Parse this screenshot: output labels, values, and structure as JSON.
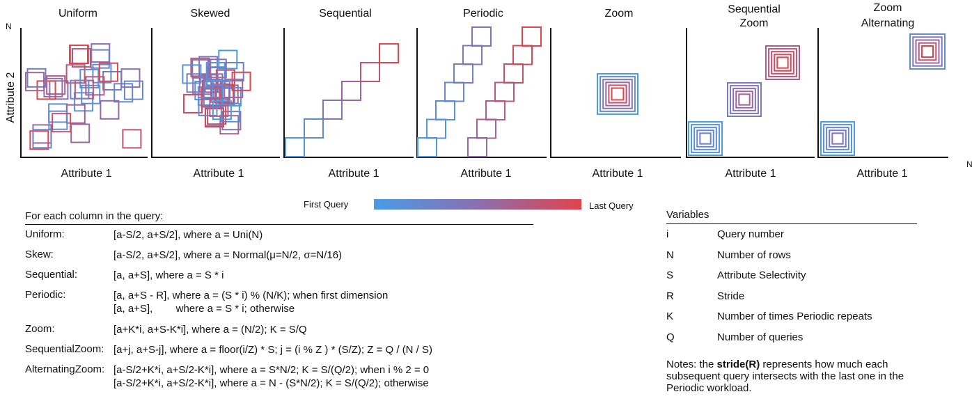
{
  "panels": [
    {
      "title": "Uniform",
      "xlabel": "Attribute 1"
    },
    {
      "title": "Skewed",
      "xlabel": "Attribute 1"
    },
    {
      "title": "Sequential",
      "xlabel": "Attribute 1"
    },
    {
      "title": "Periodic",
      "xlabel": "Attribute 1"
    },
    {
      "title": "Zoom",
      "xlabel": "Attribute 1"
    },
    {
      "title_line1": "Sequential",
      "title_line2": "Zoom",
      "xlabel": "Attribute 1"
    },
    {
      "title_line1": "Zoom",
      "title_line2": "Alternating",
      "xlabel": "Attribute 1"
    }
  ],
  "axis": {
    "ylabel": "Attribute 2",
    "y_max_label": "N",
    "x_max_label": "N"
  },
  "legend": {
    "first": "First Query",
    "last": "Last Query",
    "first_color": "#4a9be8",
    "last_color": "#e0444c"
  },
  "formulas": {
    "title": "For each column in the query:",
    "rows": [
      {
        "name": "Uniform:",
        "expr": "[a-S/2, a+S/2], where a = Uni(N)"
      },
      {
        "name": "Skew:",
        "expr": "[a-S/2, a+S/2], where a = Normal(μ=N/2, σ=N/16)"
      },
      {
        "name": "Sequential:",
        "expr": "[a, a+S], where a = S * i"
      },
      {
        "name": "Periodic:",
        "expr": "[a, a+S - R], where a = (S * i) % (N/K); when first dimension",
        "expr2": "[a, a+S],        where a = S * i; otherwise"
      },
      {
        "name": "Zoom:",
        "expr": "[a+K*i, a+S-K*i], where a = (N/2); K = S/Q"
      },
      {
        "name": "SequentialZoom:",
        "expr": "[a+j, a+S-j], where a = floor(i/Z) * S; j = (i % Z ) * (S/Z); Z = Q / (N / S)"
      },
      {
        "name": "AlternatingZoom:",
        "expr": "[a-S/2+K*i, a+S/2-K*i], where a = S*N/2; K = S/(Q/2); when i % 2 = 0",
        "expr2": "[a-S/2+K*i, a+S/2-K*i], where a = N - (S*N/2); K = S/(Q/2); otherwise"
      }
    ]
  },
  "variables": {
    "title": "Variables",
    "rows": [
      {
        "sym": "i",
        "desc": "Query number"
      },
      {
        "sym": "N",
        "desc": "Number of rows"
      },
      {
        "sym": "S",
        "desc": "Attribute Selectivity"
      },
      {
        "sym": "R",
        "desc": "Stride"
      },
      {
        "sym": "K",
        "desc": "Number of times Periodic repeats"
      },
      {
        "sym": "Q",
        "desc": "Number of queries"
      }
    ]
  },
  "notes": {
    "prefix": "Notes: the ",
    "bold": "stride(R)",
    "suffix": " represents how much each subsequent query intersects with the last one in the Periodic workload."
  }
}
